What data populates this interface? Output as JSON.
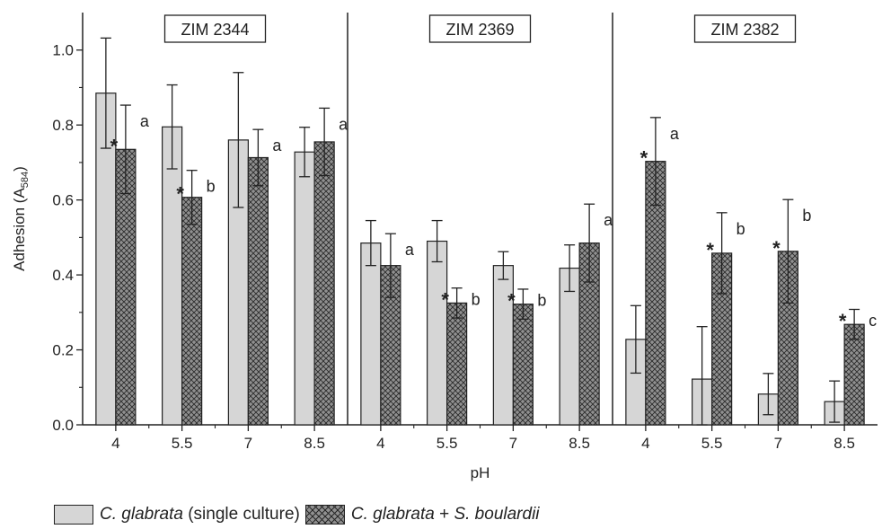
{
  "chart_data": {
    "type": "bar",
    "ylabel": "Adhesion (A584)",
    "ylabel_main": "Adhesion (A",
    "ylabel_sub": "584",
    "ylabel_close": ")",
    "xlabel": "pH",
    "ylim": [
      0,
      1.1
    ],
    "yticks": [
      "0.0",
      "0.2",
      "0.4",
      "0.6",
      "0.8",
      "1.0"
    ],
    "categories": [
      "4",
      "5.5",
      "7",
      "8.5"
    ],
    "series_names": [
      "C. glabrata (single culture)",
      "C. glabrata + S. boulardii"
    ],
    "panels": [
      {
        "title": "ZIM 2344",
        "series": [
          {
            "values": [
              0.885,
              0.795,
              0.76,
              0.728
            ],
            "errors": [
              0.147,
              0.112,
              0.18,
              0.066
            ]
          },
          {
            "values": [
              0.735,
              0.607,
              0.713,
              0.755
            ],
            "errors": [
              0.118,
              0.072,
              0.075,
              0.09
            ]
          }
        ],
        "asterisks": [
          "*",
          "*",
          "",
          ""
        ],
        "letters": [
          "a",
          "b",
          "a",
          "a"
        ]
      },
      {
        "title": "ZIM 2369",
        "series": [
          {
            "values": [
              0.485,
              0.49,
              0.425,
              0.418
            ],
            "errors": [
              0.06,
              0.055,
              0.037,
              0.062
            ]
          },
          {
            "values": [
              0.425,
              0.325,
              0.322,
              0.485
            ],
            "errors": [
              0.085,
              0.04,
              0.04,
              0.104
            ]
          }
        ],
        "asterisks": [
          "",
          "*",
          "*",
          ""
        ],
        "letters": [
          "a",
          "b",
          "b",
          "a"
        ]
      },
      {
        "title": "ZIM 2382",
        "series": [
          {
            "values": [
              0.228,
              0.122,
              0.082,
              0.062
            ],
            "errors": [
              0.09,
              0.14,
              0.055,
              0.055
            ]
          },
          {
            "values": [
              0.703,
              0.458,
              0.463,
              0.268
            ],
            "errors": [
              0.117,
              0.108,
              0.138,
              0.04
            ]
          }
        ],
        "asterisks": [
          "*",
          "*",
          "*",
          "*"
        ],
        "letters": [
          "a",
          "b",
          "b",
          "c"
        ]
      }
    ]
  },
  "legend": {
    "item1_species": "C. glabrata",
    "item1_rest": " (single culture)",
    "item2_species_a": "C. glabrata",
    "item2_plus": " + ",
    "item2_species_b": "S. boulardii"
  }
}
